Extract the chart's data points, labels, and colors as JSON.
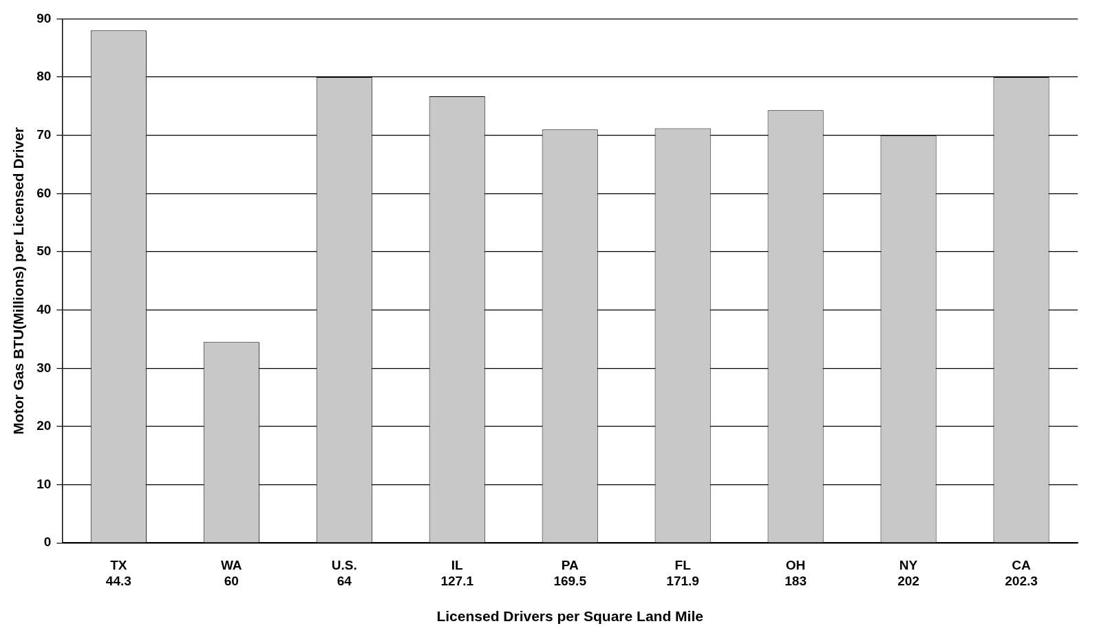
{
  "chart_data": {
    "type": "bar",
    "xlabel": "Licensed Drivers per Square Land Mile",
    "ylabel": "Motor Gas BTU(Millions) per Licensed Driver",
    "categories": [
      "TX\n44.3",
      "WA\n60",
      "U.S.\n64",
      "IL\n127.1",
      "PA\n169.5",
      "FL\n171.9",
      "OH\n183",
      "NY\n202",
      "CA\n202.3"
    ],
    "values": [
      88,
      34.5,
      80,
      76.7,
      71,
      71.2,
      74.3,
      70,
      80
    ],
    "color": "#c8c8c8",
    "ylim": [
      0,
      90
    ],
    "yticks": [
      0,
      10,
      20,
      30,
      40,
      50,
      60,
      70,
      80,
      90
    ],
    "grid": "y",
    "legend": false
  }
}
